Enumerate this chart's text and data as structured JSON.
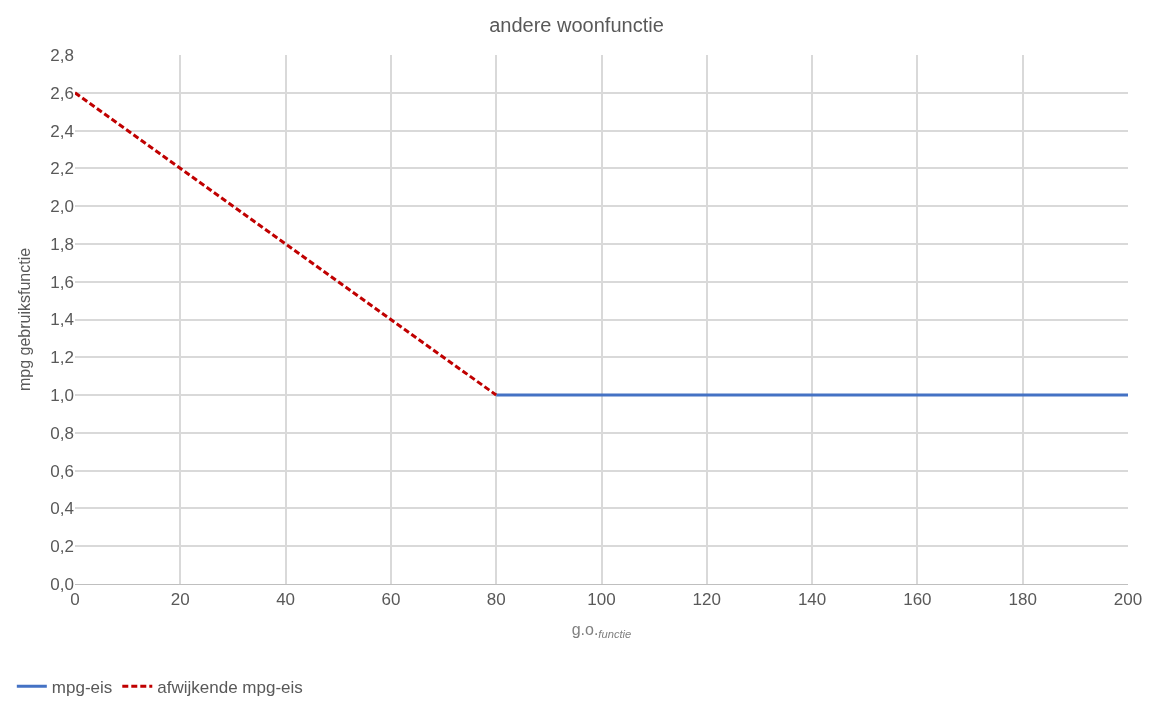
{
  "chart_data": {
    "type": "line",
    "title": "andere woonfunctie",
    "xlabel": "g.o.$_{functie}$",
    "ylabel": "mpg gebruiksfunctie",
    "xlim": [
      0,
      200
    ],
    "xticks": [
      0,
      20,
      40,
      60,
      80,
      100,
      120,
      140,
      160,
      180,
      200
    ],
    "ylim": [
      0,
      2.8
    ],
    "yticks": [
      {
        "value": 0,
        "label": "0,0"
      },
      {
        "value": 0.2,
        "label": "0,2"
      },
      {
        "value": 0.4,
        "label": "0,4"
      },
      {
        "value": 0.6,
        "label": "0,6"
      },
      {
        "value": 0.8,
        "label": "0,8"
      },
      {
        "value": 1.0,
        "label": "1,0"
      },
      {
        "value": 1.2,
        "label": "1,2"
      },
      {
        "value": 1.4,
        "label": "1,4"
      },
      {
        "value": 1.6,
        "label": "1,6"
      },
      {
        "value": 1.8,
        "label": "1,8"
      },
      {
        "value": 2.0,
        "label": "2,0"
      },
      {
        "value": 2.2,
        "label": "2,2"
      },
      {
        "value": 2.4,
        "label": "2,4"
      },
      {
        "value": 2.6,
        "label": "2,6"
      },
      {
        "value": 2.8,
        "label": "2,8"
      }
    ],
    "grid": true,
    "legend": "bottom left",
    "series": [
      {
        "name": "mpg-eis",
        "color": "#4472c4",
        "x": [
          80,
          200
        ],
        "values": [
          1.0,
          1.0
        ],
        "line_style": "solid"
      },
      {
        "name": "afwijkende mpg-eis",
        "color": "#c00000",
        "x": [
          0,
          80
        ],
        "values": [
          2.6,
          1.0
        ],
        "line_style": "dashed"
      }
    ]
  }
}
